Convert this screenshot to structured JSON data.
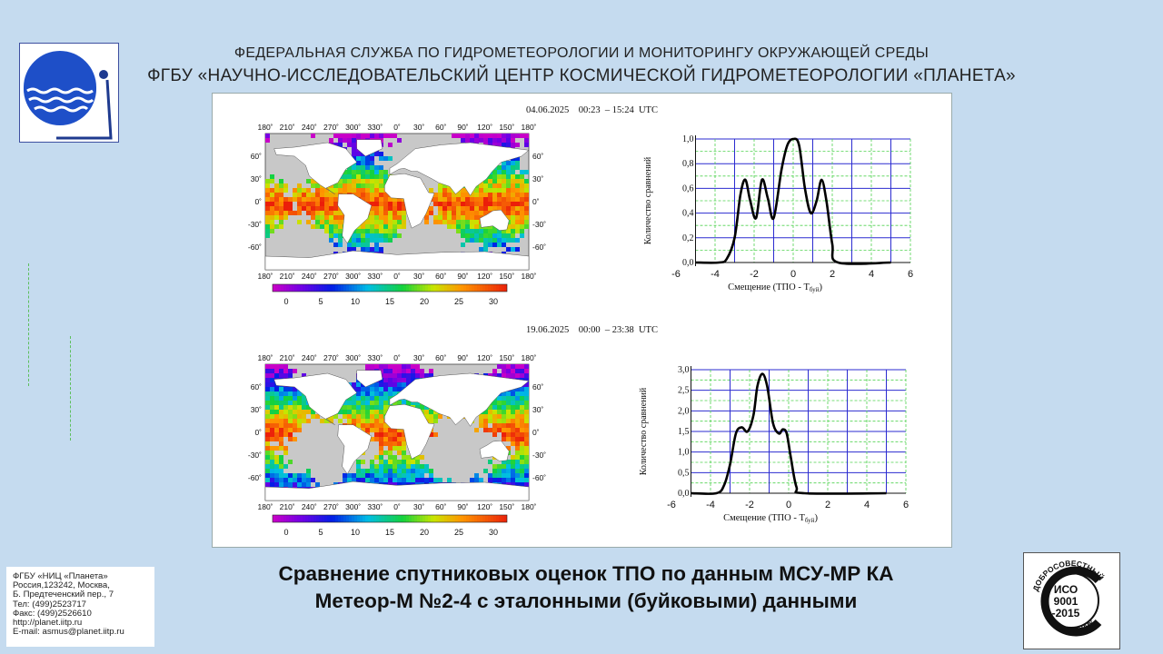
{
  "header": {
    "line1": "ФЕДЕРАЛЬНАЯ СЛУЖБА ПО ГИДРОМЕТЕОРОЛОГИИ И МОНИТОРИНГУ ОКРУЖАЮЩЕЙ СРЕДЫ",
    "line2": "ФГБУ «НАУЧНО-ИССЛЕДОВАТЕЛЬСКИЙ ЦЕНТР КОСМИЧЕСКОЙ ГИДРОМЕТЕОРОЛОГИИ «ПЛАНЕТА»"
  },
  "panels": [
    {
      "date": "04.06.2025    00:23  – 15:24  UTC"
    },
    {
      "date": "19.06.2025    00:00  – 23:38  UTC"
    }
  ],
  "map_labels": {
    "lon": [
      "180˚",
      "210˚",
      "240˚",
      "270˚",
      "300˚",
      "330˚",
      "0˚",
      "30˚",
      "60˚",
      "90˚",
      "120˚",
      "150˚",
      "180˚"
    ],
    "lat": [
      "60˚",
      "30˚",
      "0˚",
      "-30˚",
      "-60˚"
    ],
    "colorbar": [
      "0",
      "5",
      "10",
      "15",
      "20",
      "25",
      "30"
    ]
  },
  "chart_data": [
    {
      "type": "line",
      "xlabel": "Смещение (ТПО - T",
      "xlabel_sub": "буй",
      "xlabel_end": ")",
      "ylabel": "Количество сравнений",
      "xlim": [
        -6,
        6
      ],
      "ylim": [
        0,
        1.0
      ],
      "xticks": [
        "-6",
        "-4",
        "-2",
        "0",
        "2",
        "4",
        "6"
      ],
      "yticks": [
        "0,0",
        "0,2",
        "0,4",
        "0,6",
        "0,8",
        "1,0"
      ],
      "series": [
        {
          "x": [
            -5,
            -3.8,
            -3.4,
            -3.0,
            -2.7,
            -2.45,
            -2.2,
            -1.9,
            -1.6,
            -1.3,
            -1.0,
            -0.6,
            -0.3,
            0,
            0.3,
            0.6,
            0.9,
            1.2,
            1.45,
            1.7,
            2.0,
            2.3,
            5
          ],
          "y": [
            0,
            0,
            0.03,
            0.2,
            0.55,
            0.67,
            0.5,
            0.36,
            0.67,
            0.52,
            0.36,
            0.75,
            0.95,
            1.0,
            0.95,
            0.6,
            0.4,
            0.5,
            0.67,
            0.5,
            0.15,
            0,
            0
          ]
        }
      ]
    },
    {
      "type": "line",
      "xlabel": "Смещение (ТПО - T",
      "xlabel_sub": "буй",
      "xlabel_end": ")",
      "ylabel": "Количество сравнений",
      "xlim": [
        -6,
        6
      ],
      "ylim": [
        0,
        3.0
      ],
      "xticks": [
        "-6",
        "-4",
        "-2",
        "0",
        "2",
        "4",
        "6"
      ],
      "yticks": [
        "0,0",
        "0,5",
        "1,0",
        "1,5",
        "2,0",
        "2,5",
        "3,0"
      ],
      "series": [
        {
          "x": [
            -5,
            -3.7,
            -3.3,
            -3.0,
            -2.7,
            -2.4,
            -2.1,
            -1.8,
            -1.6,
            -1.35,
            -1.1,
            -0.8,
            -0.5,
            -0.3,
            -0.1,
            0.1,
            0.4,
            0.8,
            5
          ],
          "y": [
            0,
            0,
            0.2,
            0.7,
            1.45,
            1.6,
            1.5,
            1.9,
            2.6,
            2.9,
            2.6,
            1.7,
            1.45,
            1.55,
            1.45,
            0.9,
            0.15,
            0,
            0
          ]
        }
      ]
    }
  ],
  "caption": {
    "line1": "Сравнение спутниковых оценок ТПО по данным МСУ-МР КА",
    "line2": "Метеор-М №2-4 с эталонными (буйковыми) данными"
  },
  "contacts": [
    "ФГБУ «НИЦ «Планета»",
    "Россия,123242, Москва,",
    "Б. Предтеченский пер., 7",
    "Тел:   (499)2523717",
    "Факс: (499)2526610",
    "http://planet.iitp.ru",
    "E-mail: asmus@planet.iitp.ru"
  ],
  "iso": {
    "top": "ДОБРОСОВЕСТНЫЙ",
    "bottom": "ПОСТАВЩИК",
    "l1": "ИСО",
    "l2": "9001",
    "l3": "-2015"
  },
  "colors": {
    "background": "#c5dbef",
    "grid_blue": "#2b2bd0",
    "grid_green": "#4fd24f",
    "land": "#ffffff",
    "ocean_nodata": "#c8c8c8"
  }
}
